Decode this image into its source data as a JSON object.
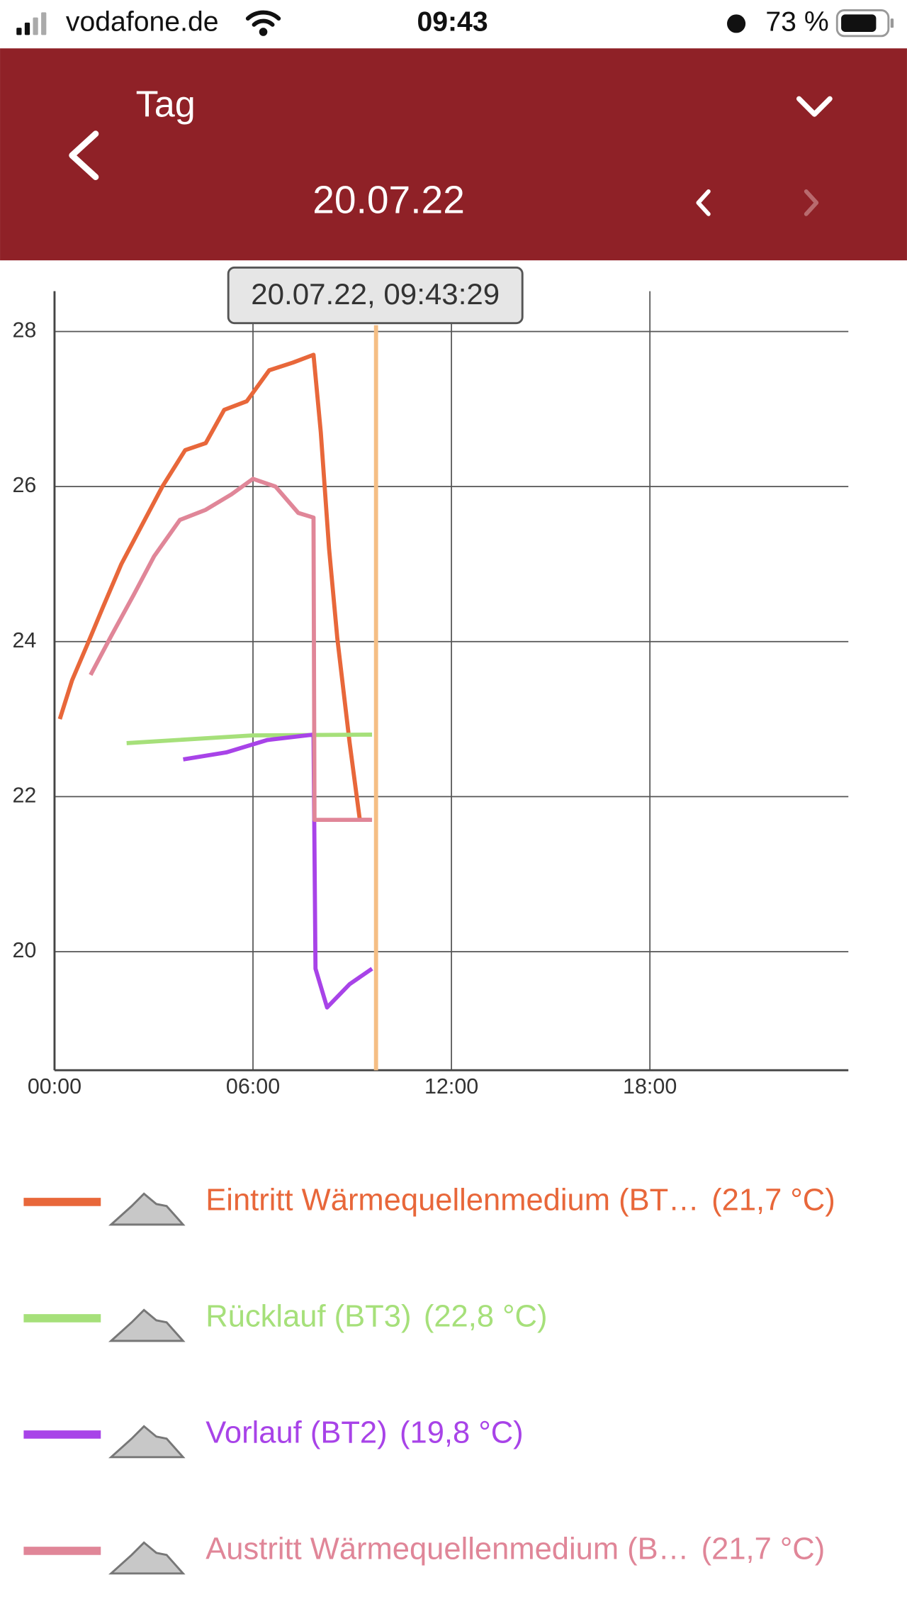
{
  "status_bar": {
    "carrier": "vodafone.de",
    "time": "09:43",
    "battery": "73 %"
  },
  "header": {
    "title": "Tag",
    "date": "20.07.22"
  },
  "chart_data": {
    "type": "line",
    "tooltip": "20.07.22, 09:43:29",
    "cursor": {
      "x": 9.72,
      "color": "#f5be84"
    },
    "xlim": [
      0,
      24
    ],
    "xticks": [
      {
        "value": 0,
        "label": "00:00"
      },
      {
        "value": 6,
        "label": "06:00"
      },
      {
        "value": 12,
        "label": "12:00"
      },
      {
        "value": 18,
        "label": "18:00"
      }
    ],
    "ylim": [
      18.47,
      28.52
    ],
    "yticks": [
      20,
      22,
      24,
      26,
      28
    ],
    "grid": true,
    "series": [
      {
        "name": "Eintritt Wärmequellenmedium (BT…",
        "current": "(21,7 °C)",
        "color": "#e8673a",
        "x": [
          0.16,
          0.53,
          1.0,
          1.46,
          2.02,
          2.64,
          3.26,
          3.95,
          4.57,
          5.13,
          5.81,
          6.49,
          7.21,
          7.83,
          8.05,
          8.3,
          8.55,
          8.92,
          9.23,
          9.54
        ],
        "values": [
          23.0,
          23.5,
          23.97,
          24.44,
          25.0,
          25.5,
          26.0,
          26.47,
          26.56,
          26.99,
          27.1,
          27.5,
          27.6,
          27.7,
          26.7,
          25.2,
          24.04,
          22.7,
          21.7,
          21.7
        ]
      },
      {
        "name": "Rücklauf (BT3)",
        "current": "(22,8 °C)",
        "color": "#a6e07a",
        "x": [
          2.18,
          6.0,
          9.6
        ],
        "values": [
          22.69,
          22.79,
          22.8
        ]
      },
      {
        "name": "Vorlauf (BT2)",
        "current": "(19,8 °C)",
        "color": "#a843e8",
        "x": [
          3.89,
          5.19,
          6.43,
          7.83,
          7.89,
          8.24,
          8.92,
          9.6
        ],
        "values": [
          22.48,
          22.57,
          22.73,
          22.8,
          19.78,
          19.28,
          19.58,
          19.78
        ]
      },
      {
        "name": "Austritt Wärmequellenmedium (B…",
        "current": "(21,7 °C)",
        "color": "#e08698",
        "x": [
          1.09,
          1.71,
          2.39,
          3.01,
          3.79,
          4.57,
          5.35,
          6.0,
          6.68,
          7.37,
          7.83,
          7.86,
          9.6
        ],
        "values": [
          23.57,
          24.07,
          24.6,
          25.1,
          25.57,
          25.7,
          25.9,
          26.1,
          26.0,
          25.66,
          25.6,
          21.7,
          21.7
        ]
      }
    ]
  }
}
